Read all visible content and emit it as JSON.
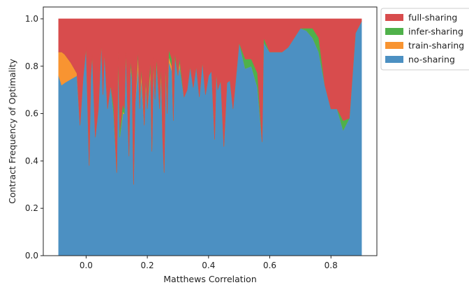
{
  "chart_data": {
    "type": "area",
    "stacked": true,
    "xlabel": "Matthews Correlation",
    "ylabel": "Contract Frequency of Optimality",
    "xlim": [
      -0.14,
      0.95
    ],
    "ylim": [
      0.0,
      1.05
    ],
    "xticks": [
      0.0,
      0.2,
      0.4,
      0.6,
      0.8
    ],
    "xtick_labels": [
      "0.0",
      "0.2",
      "0.4",
      "0.6",
      "0.8"
    ],
    "yticks": [
      0.0,
      0.2,
      0.4,
      0.6,
      0.8,
      1.0
    ],
    "ytick_labels": [
      "0.0",
      "0.2",
      "0.4",
      "0.6",
      "0.8",
      "1.0"
    ],
    "grid": false,
    "legend_position": "outside-top-right",
    "legend": [
      {
        "name": "full-sharing",
        "color": "#d84c4d"
      },
      {
        "name": "infer-sharing",
        "color": "#4fb14a"
      },
      {
        "name": "train-sharing",
        "color": "#f89431"
      },
      {
        "name": "no-sharing",
        "color": "#4c90c2"
      }
    ],
    "x": [
      -0.09,
      -0.08,
      -0.07,
      -0.05,
      -0.03,
      -0.02,
      -0.01,
      0.0,
      0.01,
      0.015,
      0.02,
      0.03,
      0.04,
      0.05,
      0.055,
      0.06,
      0.07,
      0.08,
      0.09,
      0.1,
      0.105,
      0.11,
      0.12,
      0.125,
      0.13,
      0.14,
      0.145,
      0.15,
      0.155,
      0.16,
      0.17,
      0.175,
      0.18,
      0.19,
      0.195,
      0.2,
      0.21,
      0.215,
      0.22,
      0.225,
      0.23,
      0.24,
      0.245,
      0.25,
      0.255,
      0.26,
      0.265,
      0.27,
      0.28,
      0.285,
      0.29,
      0.3,
      0.305,
      0.31,
      0.32,
      0.33,
      0.34,
      0.35,
      0.36,
      0.37,
      0.38,
      0.39,
      0.4,
      0.41,
      0.42,
      0.425,
      0.43,
      0.44,
      0.45,
      0.46,
      0.47,
      0.48,
      0.5,
      0.52,
      0.54,
      0.56,
      0.575,
      0.58,
      0.6,
      0.62,
      0.64,
      0.66,
      0.68,
      0.7,
      0.72,
      0.74,
      0.76,
      0.78,
      0.8,
      0.82,
      0.84,
      0.86,
      0.88,
      0.9
    ],
    "series": [
      {
        "name": "no-sharing",
        "values": [
          0.76,
          0.72,
          0.73,
          0.745,
          0.76,
          0.55,
          0.75,
          0.88,
          0.38,
          0.75,
          0.85,
          0.5,
          0.62,
          0.9,
          0.68,
          0.86,
          0.62,
          0.72,
          0.6,
          0.35,
          0.84,
          0.5,
          0.6,
          0.6,
          0.87,
          0.42,
          0.8,
          0.74,
          0.3,
          0.64,
          0.8,
          0.62,
          0.75,
          0.55,
          0.72,
          0.62,
          0.76,
          0.44,
          0.8,
          0.66,
          0.82,
          0.62,
          0.76,
          0.5,
          0.35,
          0.8,
          0.6,
          0.82,
          0.78,
          0.57,
          0.84,
          0.76,
          0.8,
          0.76,
          0.67,
          0.7,
          0.8,
          0.71,
          0.8,
          0.67,
          0.82,
          0.68,
          0.76,
          0.78,
          0.49,
          0.78,
          0.7,
          0.74,
          0.46,
          0.73,
          0.74,
          0.62,
          0.9,
          0.79,
          0.8,
          0.71,
          0.48,
          0.9,
          0.86,
          0.86,
          0.86,
          0.88,
          0.92,
          0.96,
          0.95,
          0.92,
          0.86,
          0.72,
          0.62,
          0.62,
          0.53,
          0.58,
          0.94,
          0.99
        ]
      },
      {
        "name": "train-sharing",
        "values": [
          0.1,
          0.14,
          0.12,
          0.07,
          0.01,
          0.0,
          0.0,
          0.0,
          0.0,
          0.0,
          0.0,
          0.0,
          0.0,
          0.0,
          0.0,
          0.0,
          0.0,
          0.0,
          0.0,
          0.0,
          0.0,
          0.0,
          0.01,
          0.0,
          0.0,
          0.0,
          0.01,
          0.0,
          0.0,
          0.0,
          0.05,
          0.0,
          0.03,
          0.0,
          0.02,
          0.0,
          0.03,
          0.0,
          0.02,
          0.0,
          0.0,
          0.0,
          0.02,
          0.0,
          0.0,
          0.01,
          0.0,
          0.02,
          0.02,
          0.0,
          0.0,
          0.0,
          0.02,
          0.0,
          0.0,
          0.0,
          0.0,
          0.0,
          0.0,
          0.0,
          0.0,
          0.0,
          0.0,
          0.0,
          0.0,
          0.0,
          0.0,
          0.0,
          0.0,
          0.0,
          0.0,
          0.0,
          0.0,
          0.0,
          0.0,
          0.0,
          0.0,
          0.0,
          0.0,
          0.0,
          0.0,
          0.0,
          0.0,
          0.0,
          0.0,
          0.0,
          0.0,
          0.0,
          0.0,
          0.0,
          0.0,
          0.0,
          0.0,
          0.0
        ]
      },
      {
        "name": "infer-sharing",
        "values": [
          0.0,
          0.0,
          0.0,
          0.0,
          0.0,
          0.0,
          0.0,
          0.0,
          0.0,
          0.0,
          0.0,
          0.0,
          0.0,
          0.0,
          0.0,
          0.0,
          0.0,
          0.0,
          0.03,
          0.0,
          0.02,
          0.03,
          0.03,
          0.02,
          0.0,
          0.0,
          0.02,
          0.02,
          0.0,
          0.0,
          0.02,
          0.0,
          0.02,
          0.0,
          0.02,
          0.0,
          0.04,
          0.0,
          0.02,
          0.0,
          0.02,
          0.0,
          0.03,
          0.0,
          0.0,
          0.02,
          0.0,
          0.03,
          0.03,
          0.0,
          0.02,
          0.0,
          0.02,
          0.02,
          0.0,
          0.0,
          0.0,
          0.0,
          0.0,
          0.0,
          0.0,
          0.0,
          0.0,
          0.0,
          0.0,
          0.0,
          0.0,
          0.0,
          0.0,
          0.0,
          0.0,
          0.0,
          0.0,
          0.04,
          0.03,
          0.06,
          0.0,
          0.02,
          0.0,
          0.0,
          0.0,
          0.0,
          0.0,
          0.0,
          0.01,
          0.04,
          0.06,
          0.0,
          0.0,
          0.0,
          0.04,
          0.0,
          0.0,
          0.0
        ]
      },
      {
        "name": "full-sharing",
        "values": [
          0.14,
          0.14,
          0.15,
          0.185,
          0.23,
          0.45,
          0.25,
          0.12,
          0.62,
          0.25,
          0.15,
          0.5,
          0.38,
          0.1,
          0.32,
          0.14,
          0.38,
          0.28,
          0.37,
          0.65,
          0.14,
          0.47,
          0.36,
          0.38,
          0.13,
          0.58,
          0.17,
          0.24,
          0.7,
          0.36,
          0.13,
          0.38,
          0.2,
          0.45,
          0.24,
          0.38,
          0.17,
          0.56,
          0.16,
          0.34,
          0.16,
          0.38,
          0.19,
          0.5,
          0.65,
          0.17,
          0.4,
          0.13,
          0.17,
          0.43,
          0.14,
          0.24,
          0.16,
          0.22,
          0.33,
          0.3,
          0.2,
          0.29,
          0.2,
          0.33,
          0.18,
          0.32,
          0.24,
          0.22,
          0.51,
          0.22,
          0.3,
          0.26,
          0.54,
          0.27,
          0.26,
          0.38,
          0.1,
          0.17,
          0.17,
          0.23,
          0.52,
          0.08,
          0.14,
          0.14,
          0.14,
          0.12,
          0.08,
          0.04,
          0.04,
          0.04,
          0.08,
          0.28,
          0.38,
          0.38,
          0.43,
          0.42,
          0.06,
          0.01
        ]
      }
    ]
  }
}
